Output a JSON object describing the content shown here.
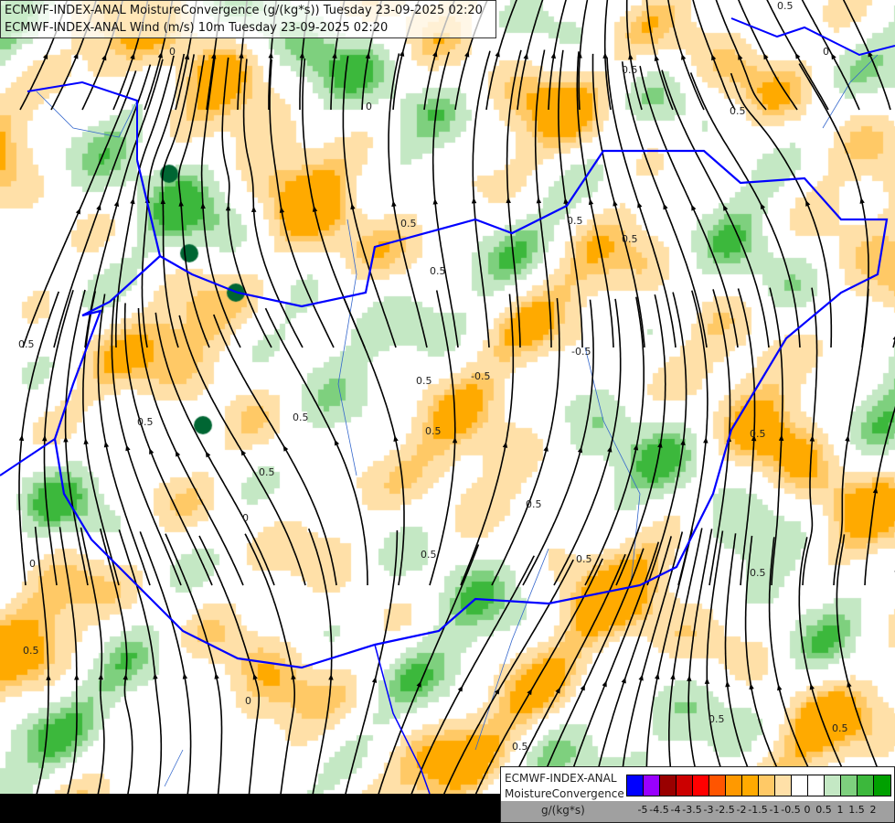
{
  "header": {
    "line1": "ECMWF-INDEX-ANAL MoistureConvergence (g/(kg*s)) Tuesday 23-09-2025 02:20",
    "line2": "ECMWF-INDEX-ANAL Wind (m/s) 10m Tuesday 23-09-2025 02:20"
  },
  "legend": {
    "model": "ECMWF-INDEX-ANAL",
    "parameter": "MoistureConvergence",
    "unit": "g/(kg*s)",
    "colors": [
      "#0000ff",
      "#9900ff",
      "#990000",
      "#cc0000",
      "#ff0000",
      "#ff5500",
      "#ff9900",
      "#ffaa00",
      "#ffc966",
      "#ffe0a8",
      "#ffffff",
      "#c4e8c4",
      "#7ed07e",
      "#3cb83c",
      "#00a000"
    ],
    "colors_extra": [
      "#ffffff"
    ],
    "ticks": [
      "-5",
      "-4.5",
      "-4",
      "-3.5",
      "-3",
      "-2.5",
      "-2",
      "-1.5",
      "-1",
      "-0.5",
      "0",
      "0.5",
      "1",
      "1.5",
      "2"
    ]
  },
  "map": {
    "border_color": "#0000ff",
    "river_color": "#3366cc",
    "streamline_color": "#000000",
    "contour_labels": [
      {
        "text": "0.5",
        "pos": [
          850,
          10
        ]
      },
      {
        "text": "0.5",
        "pos": [
          680,
          80
        ]
      },
      {
        "text": "0.5",
        "pos": [
          798,
          125
        ]
      },
      {
        "text": "0.5",
        "pos": [
          438,
          248
        ]
      },
      {
        "text": "0.5",
        "pos": [
          620,
          245
        ]
      },
      {
        "text": "0.5",
        "pos": [
          680,
          265
        ]
      },
      {
        "text": "0.5",
        "pos": [
          470,
          300
        ]
      },
      {
        "text": "0.5",
        "pos": [
          20,
          380
        ]
      },
      {
        "text": "-0.5",
        "pos": [
          625,
          388
        ]
      },
      {
        "text": "-0.5",
        "pos": [
          515,
          415
        ]
      },
      {
        "text": "0.5",
        "pos": [
          455,
          420
        ]
      },
      {
        "text": "0.5",
        "pos": [
          320,
          460
        ]
      },
      {
        "text": "0.5",
        "pos": [
          465,
          475
        ]
      },
      {
        "text": "0.5",
        "pos": [
          150,
          465
        ]
      },
      {
        "text": "0.5",
        "pos": [
          820,
          478
        ]
      },
      {
        "text": "0.5",
        "pos": [
          283,
          520
        ]
      },
      {
        "text": "0.5",
        "pos": [
          575,
          555
        ]
      },
      {
        "text": "0.5",
        "pos": [
          460,
          610
        ]
      },
      {
        "text": "0.5",
        "pos": [
          630,
          615
        ]
      },
      {
        "text": "0.5",
        "pos": [
          820,
          630
        ]
      },
      {
        "text": "0.5",
        "pos": [
          25,
          715
        ]
      },
      {
        "text": "0.5",
        "pos": [
          775,
          790
        ]
      },
      {
        "text": "0.5",
        "pos": [
          910,
          800
        ]
      },
      {
        "text": "0.5",
        "pos": [
          560,
          820
        ]
      },
      {
        "text": "0",
        "pos": [
          268,
          770
        ]
      },
      {
        "text": "0",
        "pos": [
          185,
          60
        ]
      },
      {
        "text": "0",
        "pos": [
          32,
          620
        ]
      },
      {
        "text": "0",
        "pos": [
          265,
          570
        ]
      },
      {
        "text": "0",
        "pos": [
          400,
          120
        ]
      },
      {
        "text": "0",
        "pos": [
          900,
          60
        ]
      }
    ]
  }
}
